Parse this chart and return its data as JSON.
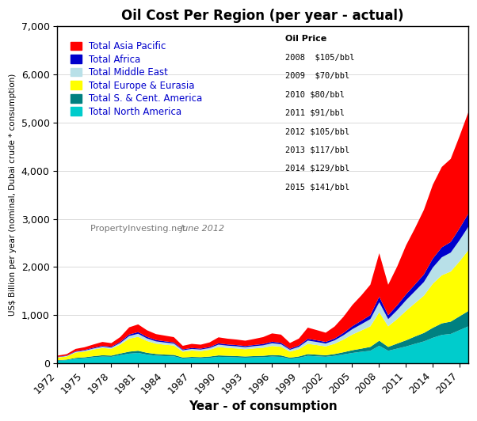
{
  "title": "Oil Cost Per Region",
  "title_suffix": " (per year - actual)",
  "xlabel": "Year - of consumption",
  "ylabel": "US$ Billion per year (nominal, Dubai crude * consumption)",
  "watermark_normal": "PropertyInvesting.net ",
  "watermark_italic": "June 2012",
  "years": [
    1972,
    1973,
    1974,
    1975,
    1976,
    1977,
    1978,
    1979,
    1980,
    1981,
    1982,
    1983,
    1984,
    1985,
    1986,
    1987,
    1988,
    1989,
    1990,
    1991,
    1992,
    1993,
    1994,
    1995,
    1996,
    1997,
    1998,
    1999,
    2000,
    2001,
    2002,
    2003,
    2004,
    2005,
    2006,
    2007,
    2008,
    2009,
    2010,
    2011,
    2012,
    2013,
    2014,
    2015,
    2016,
    2017,
    2018
  ],
  "north_america": [
    60,
    70,
    100,
    110,
    130,
    145,
    140,
    175,
    205,
    220,
    185,
    165,
    155,
    150,
    105,
    115,
    110,
    120,
    140,
    135,
    128,
    122,
    128,
    132,
    145,
    138,
    100,
    120,
    160,
    150,
    140,
    160,
    190,
    220,
    245,
    265,
    370,
    265,
    310,
    355,
    410,
    460,
    535,
    595,
    615,
    695,
    775
  ],
  "s_cent_america": [
    10,
    12,
    18,
    20,
    23,
    27,
    25,
    33,
    42,
    46,
    38,
    33,
    31,
    29,
    21,
    23,
    23,
    25,
    29,
    27,
    27,
    25,
    27,
    29,
    32,
    30,
    22,
    27,
    36,
    34,
    32,
    37,
    45,
    57,
    65,
    81,
    105,
    80,
    105,
    128,
    152,
    176,
    208,
    240,
    256,
    288,
    320
  ],
  "europe_eurasia": [
    55,
    65,
    110,
    120,
    138,
    152,
    142,
    185,
    270,
    290,
    245,
    215,
    205,
    195,
    120,
    132,
    126,
    140,
    175,
    163,
    159,
    150,
    159,
    167,
    188,
    180,
    126,
    152,
    214,
    200,
    184,
    214,
    265,
    327,
    378,
    428,
    592,
    428,
    510,
    613,
    693,
    776,
    918,
    1000,
    1042,
    1143,
    1267
  ],
  "middle_east": [
    8,
    10,
    15,
    18,
    22,
    26,
    24,
    35,
    55,
    63,
    54,
    48,
    46,
    42,
    30,
    34,
    32,
    37,
    49,
    47,
    45,
    43,
    47,
    51,
    58,
    54,
    38,
    48,
    68,
    64,
    60,
    71,
    89,
    112,
    131,
    150,
    208,
    150,
    183,
    221,
    250,
    284,
    336,
    374,
    394,
    441,
    490
  ],
  "africa": [
    7,
    8,
    11,
    13,
    15,
    17,
    17,
    23,
    31,
    35,
    31,
    27,
    25,
    23,
    17,
    19,
    19,
    21,
    27,
    25,
    25,
    23,
    25,
    27,
    30,
    29,
    21,
    27,
    37,
    35,
    33,
    38,
    48,
    62,
    71,
    82,
    115,
    82,
    101,
    122,
    138,
    157,
    186,
    207,
    219,
    246,
    273
  ],
  "asia_pacific": [
    25,
    30,
    50,
    58,
    68,
    82,
    76,
    100,
    150,
    160,
    138,
    124,
    118,
    110,
    75,
    86,
    82,
    96,
    125,
    120,
    115,
    112,
    125,
    144,
    173,
    170,
    120,
    145,
    232,
    212,
    192,
    250,
    337,
    442,
    528,
    633,
    903,
    633,
    806,
    1018,
    1171,
    1344,
    1536,
    1671,
    1729,
    1920,
    2113
  ],
  "oil_price_notes_header": "Oil Price",
  "oil_price_notes": [
    "2008  $105/bbl",
    "2009  $70/bbl",
    "2010 $80/bbl",
    "2011 $91/bbl",
    "2012 $105/bbl",
    "2013 $117/bbl",
    "2014 $129/bbl",
    "2015 $141/bbl"
  ],
  "colors": {
    "north_america": "#00CCCC",
    "s_cent_america": "#008080",
    "europe_eurasia": "#FFFF00",
    "middle_east": "#B8E0E8",
    "africa": "#0000CC",
    "asia_pacific": "#FF0000"
  },
  "legend_text_color": "#0000CC",
  "ylim": [
    0,
    7000
  ],
  "yticks": [
    0,
    1000,
    2000,
    3000,
    4000,
    5000,
    6000,
    7000
  ],
  "xtick_years": [
    1972,
    1975,
    1978,
    1981,
    1984,
    1987,
    1990,
    1993,
    1996,
    1999,
    2002,
    2005,
    2008,
    2011,
    2014,
    2017
  ],
  "background_color": "#FFFFFF"
}
